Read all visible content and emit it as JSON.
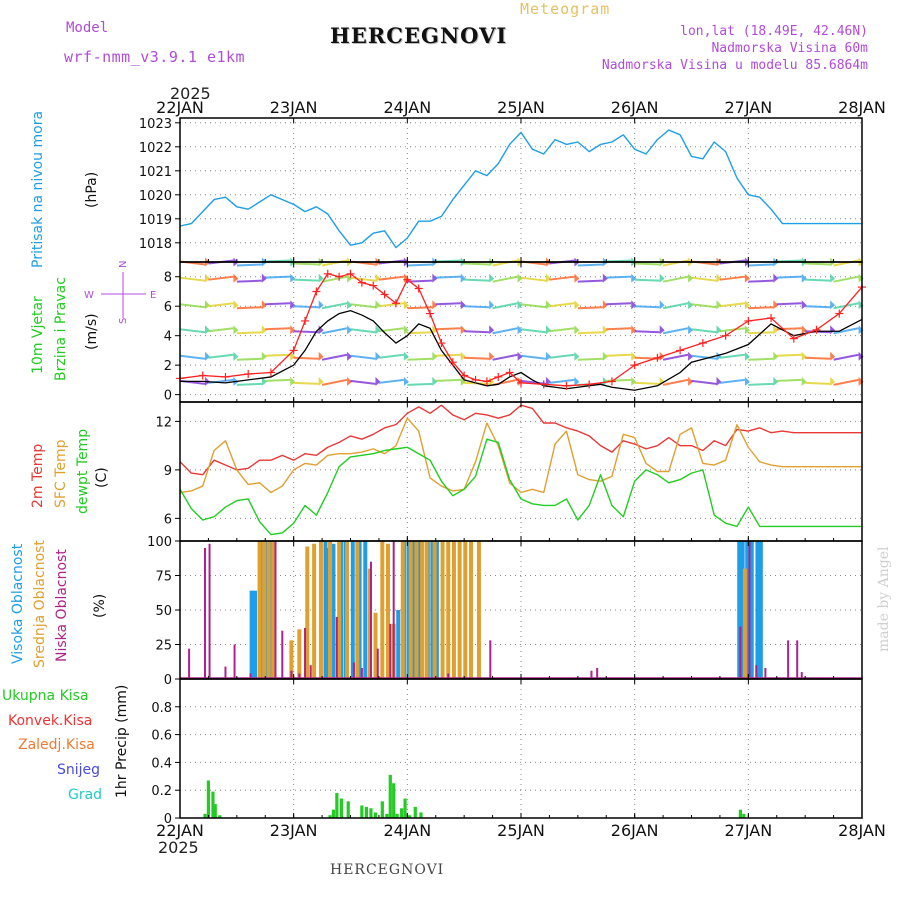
{
  "header": {
    "model_label": "Model",
    "model_name": "wrf-nmm_v3.9.1 e1km",
    "station_title": "HERCEGNOVI",
    "product": "Meteogram",
    "lonlat": "lon,lat (18.49E, 42.46N)",
    "elevation": "Nadmorska Visina 60m",
    "model_elevation": "Nadmorska Visina u modelu 85.6864m",
    "year_top": "2025",
    "year_bottom": "2025",
    "footer_station": "HERCEGNOVI",
    "credit": "made by Angel"
  },
  "colors": {
    "pressure": "#1e9ee8",
    "speed": "#000000",
    "gust": "#ff2020",
    "temp2m": "#e83838",
    "sfc": "#e0a030",
    "dewpt": "#22cc22",
    "cloud_high": "#1e9ee8",
    "cloud_mid": "#e0a030",
    "cloud_low": "#b0228a",
    "precip": "#22cc22",
    "purple": "#b04cd8",
    "dir_label": "#b04cd8"
  },
  "chart_data": [
    {
      "type": "line",
      "panel": "pressure",
      "ylabel_colored": "Pritisak na nivou mora",
      "ylabel_unit": "(hPa)",
      "x_ticks": [
        "22JAN",
        "23JAN",
        "24JAN",
        "25JAN",
        "26JAN",
        "27JAN",
        "28JAN"
      ],
      "ylim": [
        1017.2,
        1023.2
      ],
      "yticks": [
        "1018",
        "1019",
        "1020",
        "1021",
        "1022",
        "1023"
      ],
      "grid": true,
      "series": [
        {
          "color_key": "pressure",
          "x": [
            0,
            0.1,
            0.2,
            0.3,
            0.4,
            0.5,
            0.6,
            0.7,
            0.8,
            0.9,
            1.0,
            1.1,
            1.2,
            1.3,
            1.4,
            1.5,
            1.6,
            1.7,
            1.8,
            1.9,
            2.0,
            2.1,
            2.2,
            2.3,
            2.4,
            2.5,
            2.6,
            2.7,
            2.8,
            2.9,
            3.0,
            3.1,
            3.2,
            3.3,
            3.4,
            3.5,
            3.6,
            3.7,
            3.8,
            3.9,
            4.0,
            4.1,
            4.2,
            4.3,
            4.4,
            4.5,
            4.6,
            4.7,
            4.8,
            4.9,
            5.0,
            5.1,
            5.2,
            5.3,
            5.4,
            5.5,
            5.6,
            5.7,
            5.8,
            5.9,
            6.0
          ],
          "y": [
            1018.7,
            1018.8,
            1019.3,
            1019.8,
            1019.9,
            1019.5,
            1019.4,
            1019.7,
            1020.0,
            1019.8,
            1019.6,
            1019.3,
            1019.5,
            1019.2,
            1018.5,
            1017.9,
            1018.0,
            1018.4,
            1018.5,
            1017.8,
            1018.2,
            1018.9,
            1018.9,
            1019.1,
            1019.8,
            1020.4,
            1021.0,
            1020.8,
            1021.3,
            1022.1,
            1022.6,
            1021.9,
            1021.7,
            1022.3,
            1022.1,
            1022.2,
            1021.8,
            1022.1,
            1022.2,
            1022.5,
            1021.9,
            1021.7,
            1022.3,
            1022.7,
            1022.5,
            1021.6,
            1021.5,
            1022.2,
            1021.8,
            1020.7,
            1020.0,
            1019.9,
            1019.4,
            1018.8,
            1018.8,
            1018.8,
            1018.8,
            1018.8,
            1018.8,
            1018.8,
            1018.8
          ]
        }
      ]
    },
    {
      "type": "line",
      "panel": "wind",
      "ylabel_colored_1": "10m Vjetar",
      "ylabel_colored_2": "Brzina i Pravac",
      "ylabel_unit": "(m/s)",
      "compass": {
        "n": "N",
        "s": "S",
        "e": "E",
        "w": "W"
      },
      "ylim": [
        -0.5,
        9
      ],
      "yticks": [
        "0",
        "2",
        "4",
        "6",
        "8"
      ],
      "grid": true,
      "series": [
        {
          "color_key": "speed",
          "x": [
            0,
            0.2,
            0.4,
            0.6,
            0.8,
            1.0,
            1.1,
            1.2,
            1.3,
            1.4,
            1.5,
            1.6,
            1.7,
            1.8,
            1.9,
            2.0,
            2.1,
            2.2,
            2.3,
            2.4,
            2.5,
            2.6,
            2.7,
            2.8,
            2.9,
            3.0,
            3.1,
            3.2,
            3.3,
            3.4,
            3.5,
            3.6,
            3.7,
            3.8,
            3.9,
            4.0,
            4.2,
            4.4,
            4.5,
            4.6,
            4.8,
            5.0,
            5.2,
            5.4,
            5.6,
            5.8,
            6.0
          ],
          "y": [
            0.9,
            0.9,
            0.8,
            1.0,
            1.2,
            2.0,
            3.0,
            4.3,
            5.0,
            5.5,
            5.7,
            5.4,
            5.0,
            4.2,
            3.5,
            4.0,
            4.8,
            4.5,
            3.0,
            2.0,
            1.0,
            0.8,
            0.6,
            0.7,
            1.2,
            1.5,
            1.0,
            0.6,
            0.5,
            0.4,
            0.5,
            0.6,
            0.7,
            0.5,
            0.4,
            0.3,
            0.6,
            1.5,
            2.2,
            2.4,
            2.8,
            3.4,
            4.8,
            4.0,
            4.3,
            4.3,
            5.1
          ]
        },
        {
          "color_key": "gust",
          "x": [
            0,
            0.2,
            0.4,
            0.6,
            0.8,
            1.0,
            1.1,
            1.2,
            1.3,
            1.4,
            1.5,
            1.6,
            1.7,
            1.8,
            1.9,
            2.0,
            2.1,
            2.2,
            2.3,
            2.4,
            2.5,
            2.6,
            2.7,
            2.8,
            2.9,
            3.0,
            3.2,
            3.4,
            3.6,
            3.8,
            4.0,
            4.2,
            4.4,
            4.6,
            4.8,
            5.0,
            5.2,
            5.4,
            5.6,
            5.8,
            6.0
          ],
          "y": [
            1.1,
            1.3,
            1.2,
            1.4,
            1.5,
            3.0,
            5.0,
            7.0,
            8.2,
            8.0,
            8.2,
            7.6,
            7.4,
            6.8,
            6.2,
            7.8,
            7.2,
            5.5,
            3.5,
            2.2,
            1.3,
            1.0,
            0.9,
            1.2,
            1.5,
            0.8,
            0.7,
            0.6,
            0.7,
            0.9,
            2.0,
            2.5,
            3.0,
            3.5,
            4.0,
            5.0,
            5.2,
            3.8,
            4.4,
            5.5,
            7.3
          ]
        }
      ]
    },
    {
      "type": "line",
      "panel": "temperature",
      "ylabel_1": "2m Temp",
      "ylabel_2": "SFC Temp",
      "ylabel_3": "dewpt Temp",
      "ylabel_unit": "(C)",
      "ylim": [
        4.6,
        13.2
      ],
      "yticks": [
        "6",
        "9",
        "12"
      ],
      "grid": true,
      "series": [
        {
          "color_key": "temp2m",
          "x": [
            0,
            0.1,
            0.2,
            0.3,
            0.4,
            0.5,
            0.6,
            0.7,
            0.8,
            0.9,
            1.0,
            1.1,
            1.2,
            1.3,
            1.4,
            1.5,
            1.6,
            1.7,
            1.8,
            1.9,
            2.0,
            2.1,
            2.2,
            2.3,
            2.4,
            2.5,
            2.6,
            2.7,
            2.8,
            2.9,
            3.0,
            3.1,
            3.2,
            3.3,
            3.4,
            3.5,
            3.6,
            3.7,
            3.8,
            3.9,
            4.0,
            4.1,
            4.2,
            4.3,
            4.4,
            4.5,
            4.6,
            4.7,
            4.8,
            4.9,
            5.0,
            5.1,
            5.2,
            5.3,
            5.4,
            5.5,
            5.6,
            5.7,
            5.8,
            5.9,
            6.0
          ],
          "y": [
            9.5,
            8.8,
            8.7,
            9.6,
            9.3,
            9.0,
            9.1,
            9.6,
            9.6,
            9.9,
            9.6,
            10.0,
            9.9,
            10.4,
            10.7,
            11.1,
            10.9,
            11.2,
            11.6,
            11.8,
            12.5,
            12.9,
            12.5,
            13.0,
            12.4,
            12.1,
            12.5,
            12.4,
            12.2,
            12.4,
            13.0,
            12.8,
            11.9,
            11.9,
            11.6,
            11.4,
            11.1,
            10.5,
            10.1,
            10.8,
            10.6,
            10.3,
            10.5,
            11.0,
            10.5,
            10.5,
            10.2,
            10.8,
            10.5,
            11.5,
            11.4,
            11.6,
            11.3,
            11.4,
            11.3,
            11.3,
            11.3,
            11.3,
            11.3,
            11.3,
            11.3
          ]
        },
        {
          "color_key": "sfc",
          "x": [
            0,
            0.1,
            0.2,
            0.3,
            0.4,
            0.5,
            0.6,
            0.7,
            0.8,
            0.9,
            1.0,
            1.1,
            1.2,
            1.3,
            1.4,
            1.5,
            1.6,
            1.7,
            1.8,
            1.9,
            2.0,
            2.1,
            2.2,
            2.3,
            2.4,
            2.5,
            2.6,
            2.7,
            2.8,
            2.9,
            3.0,
            3.1,
            3.2,
            3.3,
            3.4,
            3.5,
            3.6,
            3.7,
            3.8,
            3.9,
            4.0,
            4.1,
            4.2,
            4.3,
            4.4,
            4.5,
            4.6,
            4.7,
            4.8,
            4.9,
            5.0,
            5.1,
            5.2,
            5.3,
            5.4,
            5.5,
            5.6,
            5.7,
            5.8,
            5.9,
            6.0
          ],
          "y": [
            7.6,
            7.7,
            8.0,
            10.2,
            10.8,
            9.0,
            8.1,
            8.2,
            7.6,
            8.0,
            9.0,
            9.4,
            9.3,
            9.9,
            10.0,
            10.0,
            10.1,
            10.3,
            10.0,
            10.5,
            12.2,
            11.4,
            8.5,
            8.0,
            7.7,
            7.8,
            9.5,
            11.9,
            10.5,
            8.2,
            7.6,
            7.8,
            7.6,
            10.6,
            11.4,
            8.7,
            8.4,
            8.3,
            8.6,
            11.2,
            11.0,
            9.4,
            8.9,
            8.9,
            11.2,
            11.6,
            9.4,
            9.3,
            9.6,
            11.8,
            10.4,
            9.5,
            9.3,
            9.2,
            9.2,
            9.2,
            9.2,
            9.2,
            9.2,
            9.2,
            9.2
          ]
        },
        {
          "color_key": "dewpt",
          "x": [
            0,
            0.1,
            0.2,
            0.3,
            0.4,
            0.5,
            0.6,
            0.7,
            0.8,
            0.9,
            1.0,
            1.1,
            1.2,
            1.3,
            1.4,
            1.5,
            1.6,
            1.7,
            1.8,
            1.9,
            2.0,
            2.1,
            2.2,
            2.3,
            2.4,
            2.5,
            2.6,
            2.7,
            2.8,
            2.9,
            3.0,
            3.1,
            3.2,
            3.3,
            3.4,
            3.5,
            3.6,
            3.7,
            3.8,
            3.9,
            4.0,
            4.1,
            4.2,
            4.3,
            4.4,
            4.5,
            4.6,
            4.7,
            4.8,
            4.9,
            5.0,
            5.1,
            5.2,
            5.3,
            5.4,
            5.5,
            5.6,
            5.7,
            5.8,
            5.9,
            6.0
          ],
          "y": [
            7.8,
            6.6,
            5.9,
            6.1,
            6.7,
            7.1,
            7.2,
            5.8,
            5.0,
            5.1,
            5.7,
            6.8,
            6.2,
            7.6,
            9.2,
            9.8,
            9.9,
            10.0,
            10.2,
            10.3,
            10.4,
            10.0,
            9.6,
            8.3,
            7.4,
            7.8,
            8.6,
            10.9,
            10.7,
            8.4,
            7.2,
            6.9,
            6.8,
            6.8,
            7.2,
            5.9,
            6.8,
            8.7,
            6.8,
            6.1,
            8.3,
            9.0,
            8.7,
            8.2,
            8.4,
            8.8,
            9.0,
            6.2,
            5.7,
            5.5,
            6.7,
            5.5,
            5.5,
            5.5,
            5.5,
            5.5,
            5.5,
            5.5,
            5.5,
            5.5,
            5.5
          ]
        }
      ]
    },
    {
      "type": "bar",
      "panel": "clouds",
      "ylabel_1": "Visoka Oblacnost",
      "ylabel_2": "Srednja Oblacnost",
      "ylabel_3": "Niska Oblacnost",
      "ylabel_unit": "(%)",
      "ylim": [
        0,
        100
      ],
      "yticks": [
        "0",
        "25",
        "50",
        "75",
        "100"
      ],
      "grid": true,
      "series": [
        {
          "name": "Visoka Oblacnost",
          "color_key": "cloud_high",
          "x": [
            0.63,
            0.66,
            0.72,
            0.76,
            0.8,
            1.28,
            1.31,
            1.35,
            1.42,
            1.46,
            1.52,
            1.58,
            1.63,
            1.92,
            1.97,
            2.01,
            2.05,
            2.1,
            2.18,
            2.22,
            2.26,
            4.92,
            4.95,
            4.99,
            5.03,
            5.08,
            5.11
          ],
          "y": [
            64,
            64,
            100,
            100,
            100,
            100,
            95,
            98,
            100,
            100,
            100,
            100,
            100,
            50,
            100,
            100,
            100,
            100,
            100,
            100,
            100,
            100,
            100,
            100,
            100,
            100,
            100
          ]
        },
        {
          "name": "Srednja Oblacnost",
          "color_key": "cloud_mid",
          "x": [
            0.7,
            0.74,
            0.78,
            0.82,
            0.98,
            1.05,
            1.12,
            1.18,
            1.24,
            1.32,
            1.4,
            1.47,
            1.56,
            1.67,
            1.72,
            1.78,
            1.83,
            1.88,
            1.96,
            2.03,
            2.08,
            2.13,
            2.17,
            2.24,
            2.31,
            2.36,
            2.41,
            2.46,
            2.51,
            2.56,
            2.63,
            4.97
          ],
          "y": [
            100,
            100,
            100,
            100,
            28,
            36,
            96,
            98,
            100,
            100,
            100,
            100,
            100,
            80,
            48,
            100,
            98,
            40,
            100,
            100,
            100,
            100,
            100,
            100,
            100,
            100,
            100,
            100,
            100,
            100,
            100,
            80
          ]
        },
        {
          "name": "Niska Oblacnost",
          "color_key": "cloud_low",
          "x": [
            0.08,
            0.22,
            0.26,
            0.4,
            0.48,
            0.62,
            0.84,
            0.9,
            0.98,
            1.05,
            1.1,
            1.15,
            1.38,
            1.53,
            1.6,
            1.68,
            1.74,
            1.85,
            1.88,
            2.36,
            2.73,
            3.62,
            3.67,
            4.93,
            5.01,
            5.07,
            5.15,
            5.35,
            5.43,
            5.47
          ],
          "y": [
            22,
            95,
            98,
            9,
            25,
            4,
            100,
            35,
            6,
            4,
            37,
            10,
            45,
            12,
            8,
            85,
            22,
            40,
            100,
            4,
            28,
            6,
            8,
            38,
            100,
            10,
            8,
            28,
            28,
            5
          ]
        }
      ]
    },
    {
      "type": "bar",
      "panel": "precip",
      "legend": [
        "Ukupna Kisa",
        "Konvek.Kisa",
        "Zaledj.Kisa",
        "Snijeg",
        "Grad"
      ],
      "ylabel_unit": "1hr Precip (mm)",
      "ylim": [
        0,
        1.0
      ],
      "yticks": [
        "0",
        "0.2",
        "0.4",
        "0.6",
        "0.8"
      ],
      "grid": true,
      "series": [
        {
          "name": "Ukupna Kisa",
          "color_key": "precip",
          "x": [
            0.22,
            0.25,
            0.29,
            0.31,
            0.35,
            1.32,
            1.35,
            1.38,
            1.42,
            1.48,
            1.6,
            1.64,
            1.68,
            1.72,
            1.78,
            1.82,
            1.85,
            1.88,
            1.91,
            1.95,
            1.98,
            2.02,
            2.07,
            2.12,
            4.93,
            4.96
          ],
          "y": [
            0.03,
            0.27,
            0.19,
            0.1,
            0.02,
            0.02,
            0.06,
            0.18,
            0.14,
            0.12,
            0.09,
            0.08,
            0.07,
            0.04,
            0.12,
            0.03,
            0.31,
            0.25,
            0.03,
            0.07,
            0.14,
            0.02,
            0.08,
            0.04,
            0.06,
            0.03
          ]
        }
      ]
    }
  ]
}
